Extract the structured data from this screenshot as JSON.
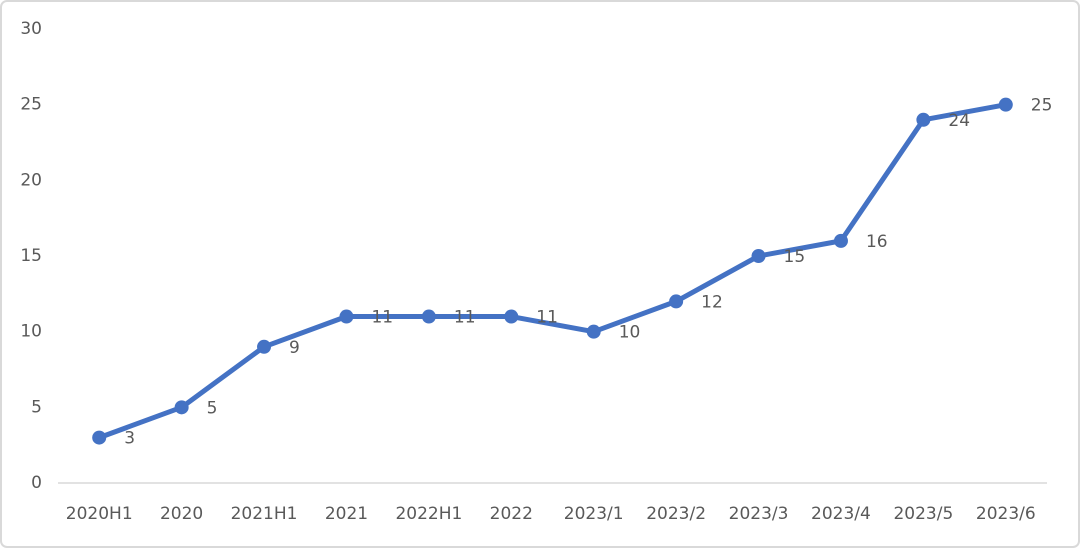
{
  "chart_data": {
    "type": "line",
    "categories": [
      "2020H1",
      "2020",
      "2021H1",
      "2021",
      "2022H1",
      "2022",
      "2023/1",
      "2023/2",
      "2023/3",
      "2023/4",
      "2023/5",
      "2023/6"
    ],
    "values": [
      3,
      5,
      9,
      11,
      11,
      11,
      10,
      12,
      15,
      16,
      24,
      25
    ],
    "color": "#4472c4",
    "ylim": [
      0,
      30
    ],
    "yticks": [
      0,
      5,
      10,
      15,
      20,
      25,
      30
    ],
    "grid": false,
    "data_labels": true
  }
}
